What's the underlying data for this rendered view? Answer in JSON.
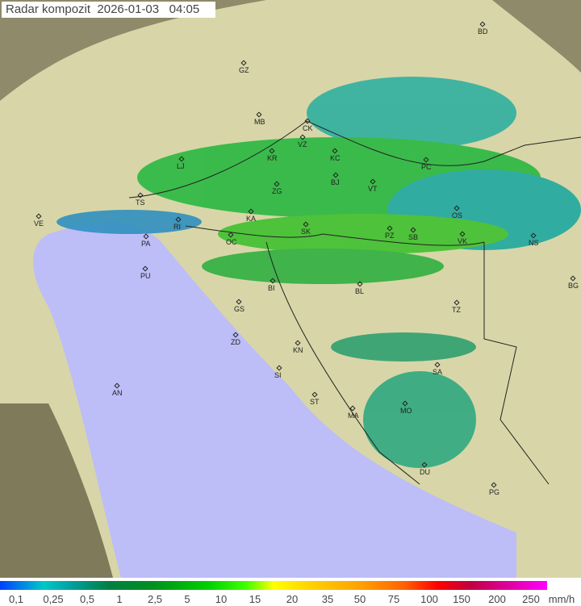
{
  "title": "Radar kompozit",
  "date": "2026-01-03",
  "time": "04:05",
  "legend": {
    "unit": "mm/h",
    "labels": [
      "0,1",
      "0,25",
      "0,5",
      "1",
      "2,5",
      "5",
      "10",
      "15",
      "20",
      "35",
      "50",
      "75",
      "100",
      "150",
      "200",
      "250"
    ]
  },
  "colors": {
    "sea": "#bdbdf7",
    "no_coverage": "#a8a890",
    "land": "#dcdcb0"
  },
  "cities": [
    "GZ",
    "BD",
    "MB",
    "CK",
    "VZ",
    "KR",
    "KC",
    "LJ",
    "ZG",
    "BJ",
    "VT",
    "PC",
    "TS",
    "VE",
    "RI",
    "KA",
    "SK",
    "OS",
    "PA",
    "PZ",
    "SB",
    "VK",
    "NS",
    "OC",
    "PU",
    "BI",
    "BL",
    "BG",
    "GS",
    "TZ",
    "ZD",
    "KN",
    "SA",
    "SI",
    "AN",
    "ST",
    "MA",
    "MO",
    "DU",
    "PG"
  ]
}
